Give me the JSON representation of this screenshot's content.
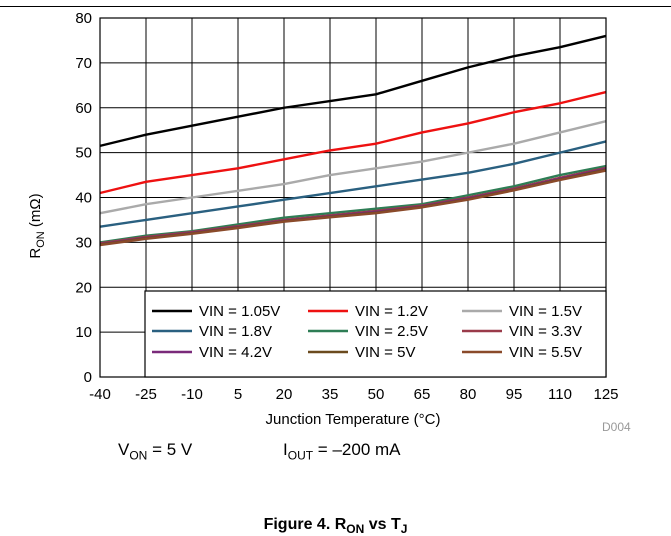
{
  "chart_data": {
    "type": "line",
    "title": "",
    "xlabel": "Junction Temperature (°C)",
    "ylabel": {
      "main": "R",
      "sub": "ON",
      "unit": " (mΩ)"
    },
    "xlim": [
      -40,
      125
    ],
    "ylim": [
      0,
      80
    ],
    "x_ticks": [
      "-40",
      "-25",
      "-10",
      "5",
      "20",
      "35",
      "50",
      "65",
      "80",
      "95",
      "110",
      "125"
    ],
    "y_ticks": [
      "0",
      "10",
      "20",
      "30",
      "40",
      "50",
      "60",
      "70",
      "80"
    ],
    "grid": true,
    "legend_position": "bottom-right",
    "series": [
      {
        "name": "VIN = 1.05V",
        "color": "#000000",
        "x": [
          -40,
          -25,
          -10,
          5,
          20,
          35,
          50,
          65,
          80,
          95,
          110,
          125
        ],
        "values": [
          51.5,
          54,
          56,
          58,
          60,
          61.5,
          63,
          66,
          69,
          71.5,
          73.5,
          76
        ]
      },
      {
        "name": "VIN = 1.2V",
        "color": "#ee1111",
        "x": [
          -40,
          -25,
          -10,
          5,
          20,
          35,
          50,
          65,
          80,
          95,
          110,
          125
        ],
        "values": [
          41,
          43.5,
          45,
          46.5,
          48.5,
          50.5,
          52,
          54.5,
          56.5,
          59,
          61,
          63.5
        ]
      },
      {
        "name": "VIN = 1.5V",
        "color": "#aaaaaa",
        "x": [
          -40,
          -25,
          -10,
          5,
          20,
          35,
          50,
          65,
          80,
          95,
          110,
          125
        ],
        "values": [
          36.5,
          38.5,
          40,
          41.5,
          43,
          45,
          46.5,
          48,
          50,
          52,
          54.5,
          57
        ]
      },
      {
        "name": "VIN = 1.8V",
        "color": "#2a6080",
        "x": [
          -40,
          -25,
          -10,
          5,
          20,
          35,
          50,
          65,
          80,
          95,
          110,
          125
        ],
        "values": [
          33.5,
          35,
          36.5,
          38,
          39.5,
          41,
          42.5,
          44,
          45.5,
          47.5,
          50,
          52.5
        ]
      },
      {
        "name": "VIN = 2.5V",
        "color": "#2e7d55",
        "x": [
          -40,
          -25,
          -10,
          5,
          20,
          35,
          50,
          65,
          80,
          95,
          110,
          125
        ],
        "values": [
          30,
          31.5,
          32.5,
          34,
          35.5,
          36.5,
          37.5,
          38.5,
          40.5,
          42.5,
          45,
          47
        ]
      },
      {
        "name": "VIN = 3.3V",
        "color": "#9a3b4a",
        "x": [
          -40,
          -25,
          -10,
          5,
          20,
          35,
          50,
          65,
          80,
          95,
          110,
          125
        ],
        "values": [
          29.8,
          31.2,
          32.3,
          33.6,
          35,
          36,
          37,
          38.2,
          40,
          42,
          44.4,
          46.6
        ]
      },
      {
        "name": "VIN = 4.2V",
        "color": "#7a2a7a",
        "x": [
          -40,
          -25,
          -10,
          5,
          20,
          35,
          50,
          65,
          80,
          95,
          110,
          125
        ],
        "values": [
          29.6,
          31,
          32.1,
          33.4,
          34.8,
          35.8,
          36.8,
          38,
          39.8,
          41.8,
          44.2,
          46.4
        ]
      },
      {
        "name": "VIN = 5V",
        "color": "#6b4a1e",
        "x": [
          -40,
          -25,
          -10,
          5,
          20,
          35,
          50,
          65,
          80,
          95,
          110,
          125
        ],
        "values": [
          29.5,
          30.9,
          32,
          33.3,
          34.7,
          35.7,
          36.6,
          37.9,
          39.6,
          41.7,
          44,
          46.2
        ]
      },
      {
        "name": "VIN = 5.5V",
        "color": "#8a4a2a",
        "x": [
          -40,
          -25,
          -10,
          5,
          20,
          35,
          50,
          65,
          80,
          95,
          110,
          125
        ],
        "values": [
          29.4,
          30.8,
          31.9,
          33.2,
          34.6,
          35.6,
          36.5,
          37.8,
          39.5,
          41.6,
          43.9,
          46
        ]
      }
    ]
  },
  "legend_order": [
    0,
    3,
    6,
    1,
    4,
    7,
    2,
    5,
    8
  ],
  "figure_code": "D004",
  "notes": {
    "von": {
      "main": "V",
      "sub": "ON",
      "rest": " = 5 V"
    },
    "iout": {
      "main": "I",
      "sub": "OUT",
      "rest": " = –200 mA"
    }
  },
  "caption": {
    "prefix": "Figure 4. R",
    "sub1": "ON",
    "mid": " vs T",
    "sub2": "J"
  }
}
